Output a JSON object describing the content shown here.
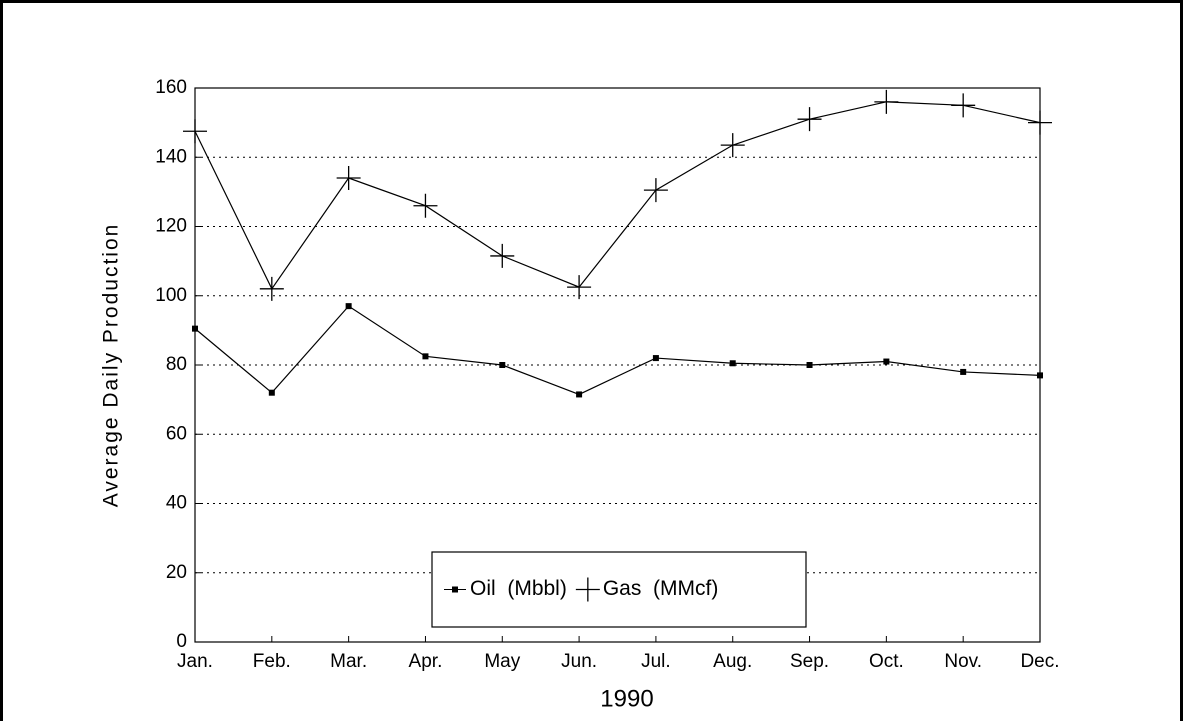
{
  "chart_data": {
    "type": "line",
    "x_label": "1990",
    "y_label": "Average Daily Production",
    "categories": [
      "Jan.",
      "Feb.",
      "Mar.",
      "Apr.",
      "May",
      "Jun.",
      "Jul.",
      "Aug.",
      "Sep.",
      "Oct.",
      "Nov.",
      "Dec."
    ],
    "series": [
      {
        "name": "Oil  (Mbbl)",
        "color": "#000000",
        "marker": "square",
        "values": [
          90.5,
          72,
          97,
          82.5,
          80,
          71.5,
          82,
          80.5,
          80,
          81,
          78,
          77
        ]
      },
      {
        "name": "Gas  (MMcf)",
        "color": "#000000",
        "marker": "plus",
        "values": [
          147.5,
          102,
          134,
          126,
          111.5,
          102.5,
          130.5,
          143.5,
          151,
          156,
          155,
          150
        ]
      }
    ],
    "ylim": [
      0,
      160
    ],
    "yticks": [
      0,
      20,
      40,
      60,
      80,
      100,
      120,
      140,
      160
    ],
    "grid": true,
    "legend": "bottom"
  }
}
